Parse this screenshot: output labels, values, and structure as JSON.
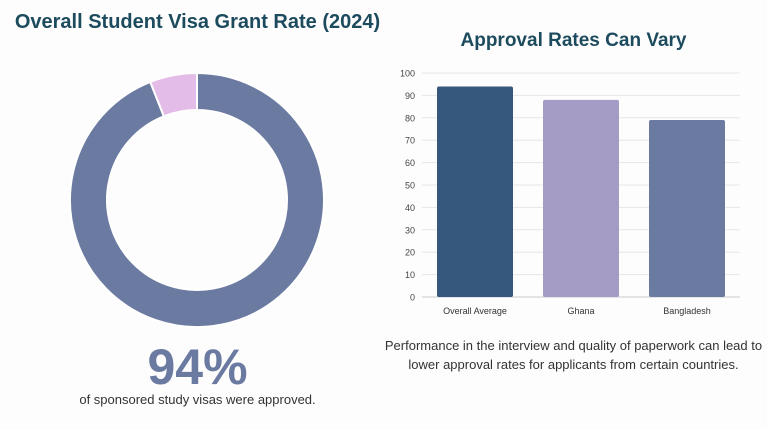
{
  "chart_data": [
    {
      "type": "pie",
      "title": "Overall Student Visa Grant Rate (2024)",
      "slices": [
        {
          "label": "",
          "value": 94,
          "color": "#6b7aa1"
        },
        {
          "label": "",
          "value": 6,
          "color": "#e3bde8"
        }
      ],
      "big_stat": "94%",
      "caption": "of sponsored study visas were approved."
    },
    {
      "type": "bar",
      "title": "Approval Rates Can Vary",
      "categories": [
        "Overall Average",
        "Ghana",
        "Bangladesh"
      ],
      "values": [
        94,
        88,
        79
      ],
      "colors": [
        "#36587c",
        "#a49cc5",
        "#6b7aa1"
      ],
      "ylim": [
        0,
        100
      ],
      "yticks": [
        0,
        10,
        20,
        30,
        40,
        50,
        60,
        70,
        80,
        90,
        100
      ],
      "grid": true,
      "note": "Performance in the interview and quality of paperwork can lead to lower approval rates for applicants from certain countries."
    }
  ]
}
